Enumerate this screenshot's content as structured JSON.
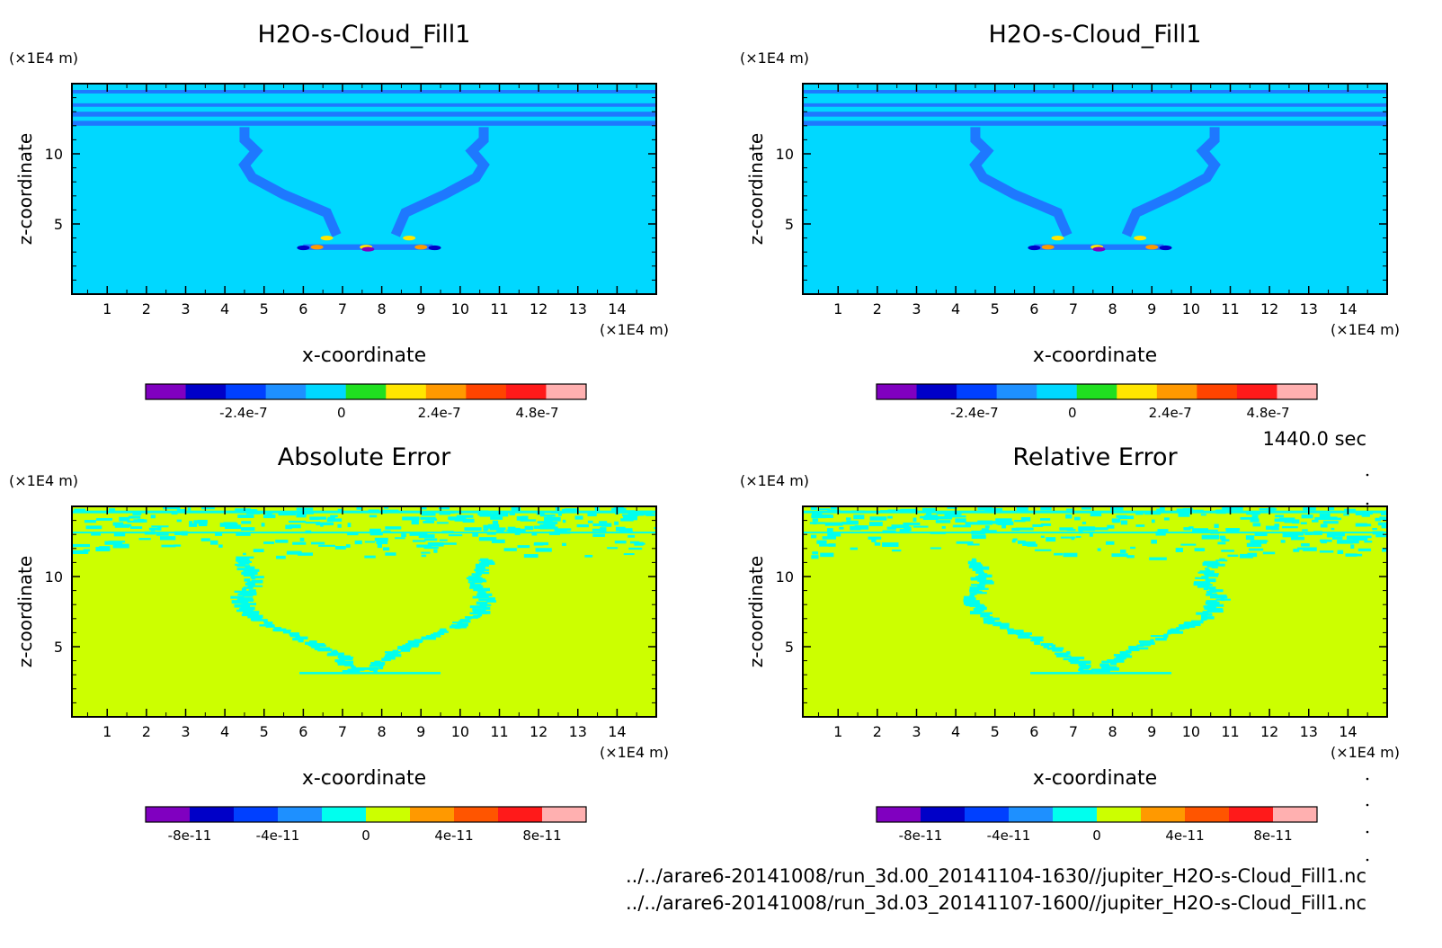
{
  "colors": {
    "field_bg": "#00d8ff",
    "field_line": "#1e78ff",
    "error_bg": "#ccff00",
    "error_spot": "#00ffee",
    "frame": "#000000"
  },
  "time_label": "1440.0 sec",
  "file_paths": [
    "../../arare6-20141008/run_3d.00_20141104-1630//jupiter_H2O-s-Cloud_Fill1.nc",
    "../../arare6-20141008/run_3d.03_20141107-1600//jupiter_H2O-s-Cloud_Fill1.nc"
  ],
  "chart_data": [
    {
      "type": "heatmap",
      "title": "H2O-s-Cloud_Fill1",
      "xlabel": "x-coordinate",
      "ylabel": "z-coordinate",
      "x_unit": "(×1E4 m)",
      "y_unit": "(×1E4 m)",
      "xlim": [
        0.1,
        15.0
      ],
      "ylim": [
        0.0,
        15.0
      ],
      "xticks": [
        1,
        2,
        3,
        4,
        5,
        6,
        7,
        8,
        9,
        10,
        11,
        12,
        13,
        14
      ],
      "yticks": [
        5,
        10
      ],
      "field": "cloud",
      "colorbar": {
        "colors": [
          "#8000c0",
          "#0000c8",
          "#0040ff",
          "#1e90ff",
          "#00d8ff",
          "#20e020",
          "#ffe600",
          "#ff9900",
          "#ff4400",
          "#ff1a1a",
          "#ffb0b0"
        ],
        "tick_labels": [
          "-2.4e-7",
          "0",
          "2.4e-7",
          "4.8e-7"
        ],
        "tick_values": [
          -2.4e-07,
          0,
          2.4e-07,
          4.8e-07
        ],
        "range": [
          -4.8e-07,
          6e-07
        ]
      }
    },
    {
      "type": "heatmap",
      "title": "H2O-s-Cloud_Fill1",
      "xlabel": "x-coordinate",
      "ylabel": "z-coordinate",
      "x_unit": "(×1E4 m)",
      "y_unit": "(×1E4 m)",
      "xlim": [
        0.1,
        15.0
      ],
      "ylim": [
        0.0,
        15.0
      ],
      "xticks": [
        1,
        2,
        3,
        4,
        5,
        6,
        7,
        8,
        9,
        10,
        11,
        12,
        13,
        14
      ],
      "yticks": [
        5,
        10
      ],
      "field": "cloud",
      "colorbar": {
        "colors": [
          "#8000c0",
          "#0000c8",
          "#0040ff",
          "#1e90ff",
          "#00d8ff",
          "#20e020",
          "#ffe600",
          "#ff9900",
          "#ff4400",
          "#ff1a1a",
          "#ffb0b0"
        ],
        "tick_labels": [
          "-2.4e-7",
          "0",
          "2.4e-7",
          "4.8e-7"
        ],
        "tick_values": [
          -2.4e-07,
          0,
          2.4e-07,
          4.8e-07
        ],
        "range": [
          -4.8e-07,
          6e-07
        ]
      }
    },
    {
      "type": "heatmap",
      "title": "Absolute Error",
      "xlabel": "x-coordinate",
      "ylabel": "z-coordinate",
      "x_unit": "(×1E4 m)",
      "y_unit": "(×1E4 m)",
      "xlim": [
        0.1,
        15.0
      ],
      "ylim": [
        0.0,
        15.0
      ],
      "xticks": [
        1,
        2,
        3,
        4,
        5,
        6,
        7,
        8,
        9,
        10,
        11,
        12,
        13,
        14
      ],
      "yticks": [
        5,
        10
      ],
      "field": "error",
      "colorbar": {
        "colors": [
          "#8000c0",
          "#0000c8",
          "#0040ff",
          "#1e90ff",
          "#00ffee",
          "#ccff00",
          "#ff9900",
          "#ff5500",
          "#ff1a1a",
          "#ffb0b0"
        ],
        "tick_labels": [
          "-8e-11",
          "-4e-11",
          "0",
          "4e-11",
          "8e-11"
        ],
        "tick_values": [
          -8e-11,
          -4e-11,
          0,
          4e-11,
          8e-11
        ],
        "range": [
          -1e-10,
          1e-10
        ]
      }
    },
    {
      "type": "heatmap",
      "title": "Relative Error",
      "xlabel": "x-coordinate",
      "ylabel": "z-coordinate",
      "x_unit": "(×1E4 m)",
      "y_unit": "(×1E4 m)",
      "xlim": [
        0.1,
        15.0
      ],
      "ylim": [
        0.0,
        15.0
      ],
      "xticks": [
        1,
        2,
        3,
        4,
        5,
        6,
        7,
        8,
        9,
        10,
        11,
        12,
        13,
        14
      ],
      "yticks": [
        5,
        10
      ],
      "field": "error",
      "colorbar": {
        "colors": [
          "#8000c0",
          "#0000c8",
          "#0040ff",
          "#1e90ff",
          "#00ffee",
          "#ccff00",
          "#ff9900",
          "#ff5500",
          "#ff1a1a",
          "#ffb0b0"
        ],
        "tick_labels": [
          "-8e-11",
          "-4e-11",
          "0",
          "4e-11",
          "8e-11"
        ],
        "tick_values": [
          -8e-11,
          -4e-11,
          0,
          4e-11,
          8e-11
        ],
        "range": [
          -1e-10,
          1e-10
        ]
      }
    }
  ]
}
